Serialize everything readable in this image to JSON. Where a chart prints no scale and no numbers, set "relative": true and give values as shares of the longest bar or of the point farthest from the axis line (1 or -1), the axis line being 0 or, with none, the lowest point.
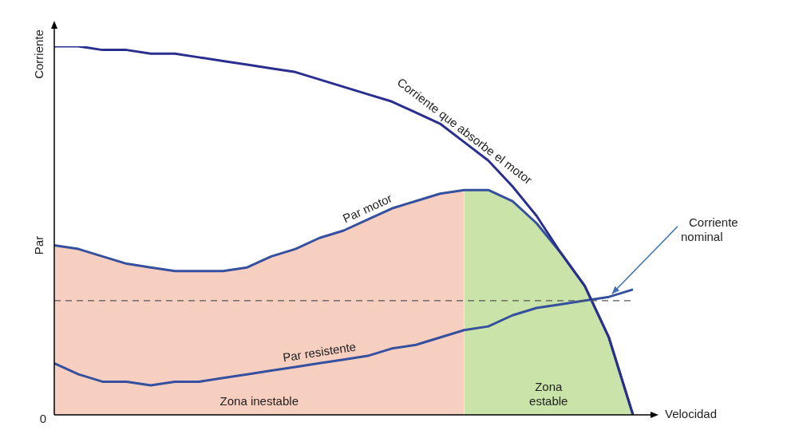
{
  "chart_data": {
    "type": "line",
    "relative": true,
    "xlabel": "Velocidad",
    "ylabel": "Par",
    "legend": false,
    "categories": [
      null,
      null,
      null,
      null,
      null,
      null,
      null,
      null,
      null,
      null,
      null,
      null,
      null,
      null,
      null,
      null,
      null,
      null,
      null,
      null,
      null,
      null,
      null,
      null,
      null
    ],
    "series": [
      {
        "type": "area",
        "name": "Zona inestable",
        "color": "#f7cfc0",
        "values": [
          0.46,
          0.45,
          0.43,
          0.41,
          0.4,
          0.39,
          0.39,
          0.39,
          0.4,
          0.43,
          0.45,
          0.48,
          0.5,
          0.53,
          0.56,
          0.58,
          0.6,
          0.61,
          null,
          null,
          null,
          null,
          null,
          null,
          null
        ]
      },
      {
        "type": "area",
        "name": "Zona estable",
        "color": "#c9e3a8",
        "values": [
          null,
          null,
          null,
          null,
          null,
          null,
          null,
          null,
          null,
          null,
          null,
          null,
          null,
          null,
          null,
          null,
          null,
          0.61,
          0.61,
          0.58,
          0.52,
          0.44,
          0.35,
          0.21,
          0
        ]
      },
      {
        "name": "Corriente que absorbe el motor",
        "color": "#2a2f8f",
        "values": [
          1.0,
          1.0,
          0.99,
          0.99,
          0.98,
          0.98,
          0.97,
          0.96,
          0.95,
          0.94,
          0.93,
          0.91,
          0.89,
          0.87,
          0.85,
          0.82,
          0.79,
          0.74,
          0.69,
          0.62,
          0.54,
          0.44,
          0.35,
          0.21,
          0
        ]
      },
      {
        "name": "Par motor",
        "color": "#34509e",
        "values": [
          0.46,
          0.45,
          0.43,
          0.41,
          0.4,
          0.39,
          0.39,
          0.39,
          0.4,
          0.43,
          0.45,
          0.48,
          0.5,
          0.53,
          0.56,
          0.58,
          0.6,
          0.61,
          0.61,
          0.58,
          0.52,
          0.44,
          0.35,
          0.21,
          0
        ]
      },
      {
        "name": "Par resistente",
        "color": "#34509e",
        "values": [
          0.14,
          0.11,
          0.09,
          0.09,
          0.08,
          0.09,
          0.09,
          0.1,
          0.11,
          0.12,
          0.13,
          0.14,
          0.15,
          0.16,
          0.18,
          0.19,
          0.21,
          0.23,
          0.24,
          0.27,
          0.29,
          0.3,
          0.31,
          0.32,
          0.34
        ]
      }
    ],
    "ref_lines": [
      {
        "axis": "y",
        "value": 0.31,
        "color": "#555555",
        "line_style": "dashed"
      }
    ],
    "annotations": [
      "Corriente",
      "0",
      "Corriente nominal"
    ]
  }
}
